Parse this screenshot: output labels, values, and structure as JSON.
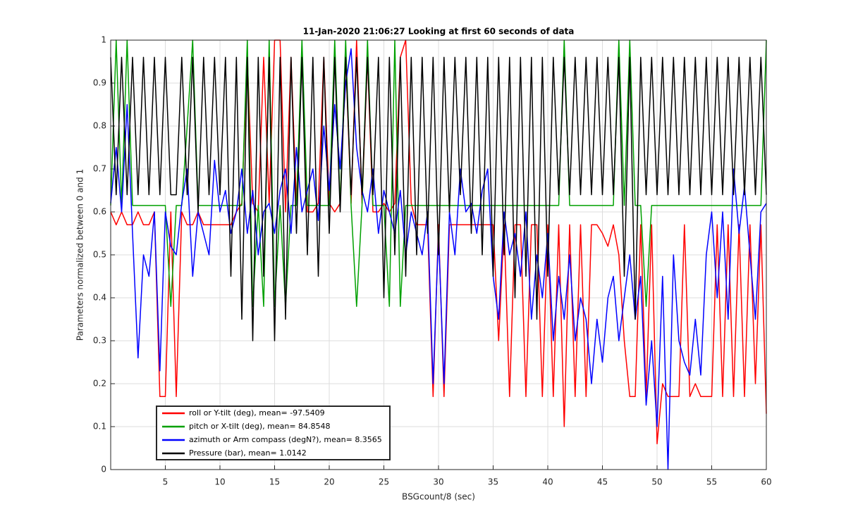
{
  "chart_data": {
    "type": "line",
    "title": "11-Jan-2020 21:06:27 Looking at first 60 seconds of data",
    "xlabel": "BSGcount/8 (sec)",
    "ylabel": "Parameters normalized between 0 and 1",
    "x": [
      0,
      0.5,
      1,
      1.5,
      2,
      2.5,
      3,
      3.5,
      4,
      4.5,
      5,
      5.5,
      6,
      6.5,
      7,
      7.5,
      8,
      8.5,
      9,
      9.5,
      10,
      10.5,
      11,
      11.5,
      12,
      12.5,
      13,
      13.5,
      14,
      14.5,
      15,
      15.5,
      16,
      16.5,
      17,
      17.5,
      18,
      18.5,
      19,
      19.5,
      20,
      20.5,
      21,
      21.5,
      22,
      22.5,
      23,
      23.5,
      24,
      24.5,
      25,
      25.5,
      26,
      26.5,
      27,
      27.5,
      28,
      28.5,
      29,
      29.5,
      30,
      30.5,
      31,
      31.5,
      32,
      32.5,
      33,
      33.5,
      34,
      34.5,
      35,
      35.5,
      36,
      36.5,
      37,
      37.5,
      38,
      38.5,
      39,
      39.5,
      40,
      40.5,
      41,
      41.5,
      42,
      42.5,
      43,
      43.5,
      44,
      44.5,
      45,
      45.5,
      46,
      46.5,
      47,
      47.5,
      48,
      48.5,
      49,
      49.5,
      50,
      50.5,
      51,
      51.5,
      52,
      52.5,
      53,
      53.5,
      54,
      54.5,
      55,
      55.5,
      56,
      56.5,
      57,
      57.5,
      58,
      58.5,
      59,
      59.5,
      60
    ],
    "series": [
      {
        "name": "roll or Y-tilt (deg), mean= -97.5409",
        "color": "#ff0000",
        "values": [
          0.6,
          0.57,
          0.6,
          0.57,
          0.57,
          0.6,
          0.57,
          0.57,
          0.6,
          0.17,
          0.17,
          0.6,
          0.17,
          0.6,
          0.57,
          0.57,
          0.6,
          0.57,
          0.57,
          0.57,
          0.57,
          0.57,
          0.57,
          0.6,
          0.62,
          0.96,
          0.62,
          0.6,
          0.96,
          0.62,
          1,
          1,
          0.6,
          0.96,
          0.62,
          0.96,
          0.6,
          0.6,
          0.62,
          0.96,
          0.62,
          0.6,
          0.62,
          0.96,
          0.62,
          1,
          0.62,
          0.96,
          0.6,
          0.6,
          0.62,
          0.6,
          0.62,
          0.96,
          1,
          0.62,
          0.57,
          0.57,
          0.57,
          0.17,
          0.57,
          0.17,
          0.57,
          0.57,
          0.57,
          0.57,
          0.57,
          0.57,
          0.57,
          0.57,
          0.57,
          0.3,
          0.57,
          0.17,
          0.57,
          0.57,
          0.17,
          0.57,
          0.57,
          0.17,
          0.57,
          0.17,
          0.57,
          0.1,
          0.57,
          0.17,
          0.57,
          0.17,
          0.57,
          0.57,
          0.55,
          0.52,
          0.57,
          0.5,
          0.3,
          0.17,
          0.17,
          0.57,
          0.17,
          0.57,
          0.06,
          0.2,
          0.17,
          0.17,
          0.17,
          0.57,
          0.17,
          0.2,
          0.17,
          0.17,
          0.17,
          0.57,
          0.17,
          0.57,
          0.17,
          0.57,
          0.17,
          0.57,
          0.2,
          0.57,
          0.13
        ]
      },
      {
        "name": "pitch or X-tilt (deg), mean= 84.8548",
        "color": "#00a000",
        "values": [
          0.615,
          1,
          0.615,
          1,
          0.615,
          0.615,
          0.615,
          0.615,
          0.615,
          0.615,
          0.615,
          0.38,
          0.615,
          0.615,
          0.8,
          1,
          0.615,
          0.615,
          0.615,
          0.615,
          0.615,
          0.615,
          0.615,
          0.615,
          0.615,
          1,
          0.38,
          0.615,
          0.38,
          1,
          0.38,
          0.615,
          0.38,
          0.615,
          0.615,
          1,
          0.615,
          0.615,
          0.615,
          0.615,
          0.615,
          1,
          0.615,
          1,
          0.615,
          0.38,
          0.615,
          1,
          0.615,
          0.615,
          0.615,
          0.38,
          1,
          0.38,
          0.615,
          0.615,
          0.615,
          0.615,
          0.615,
          0.615,
          0.615,
          0.615,
          0.615,
          0.615,
          0.615,
          0.615,
          0.615,
          0.615,
          0.615,
          0.615,
          0.615,
          0.615,
          0.615,
          0.615,
          0.615,
          0.615,
          0.615,
          0.615,
          0.615,
          0.615,
          0.615,
          0.615,
          0.615,
          1,
          0.615,
          0.615,
          0.615,
          0.615,
          0.615,
          0.615,
          0.615,
          0.615,
          0.615,
          1,
          0.615,
          1,
          0.615,
          0.615,
          0.38,
          0.615,
          0.615,
          0.615,
          0.615,
          0.615,
          0.615,
          0.615,
          0.615,
          0.615,
          0.615,
          0.615,
          0.615,
          0.615,
          0.615,
          0.615,
          0.615,
          0.615,
          0.615,
          0.615,
          0.615,
          0.615,
          1
        ]
      },
      {
        "name": "azimuth or Arm compass (degN?), mean= 8.3565",
        "color": "#0000ff",
        "values": [
          0.62,
          0.75,
          0.6,
          0.85,
          0.55,
          0.26,
          0.5,
          0.45,
          0.6,
          0.23,
          0.6,
          0.52,
          0.5,
          0.62,
          0.7,
          0.45,
          0.6,
          0.55,
          0.5,
          0.72,
          0.6,
          0.65,
          0.55,
          0.6,
          0.7,
          0.55,
          0.65,
          0.5,
          0.6,
          0.62,
          0.55,
          0.65,
          0.7,
          0.55,
          0.75,
          0.6,
          0.65,
          0.7,
          0.58,
          0.8,
          0.65,
          0.85,
          0.7,
          0.9,
          0.98,
          0.75,
          0.65,
          0.6,
          0.7,
          0.55,
          0.65,
          0.6,
          0.55,
          0.65,
          0.5,
          0.6,
          0.55,
          0.5,
          0.6,
          0.2,
          0.55,
          0.2,
          0.6,
          0.5,
          0.7,
          0.6,
          0.62,
          0.55,
          0.65,
          0.7,
          0.45,
          0.35,
          0.6,
          0.5,
          0.55,
          0.45,
          0.6,
          0.35,
          0.5,
          0.4,
          0.55,
          0.3,
          0.45,
          0.35,
          0.5,
          0.3,
          0.4,
          0.35,
          0.2,
          0.35,
          0.25,
          0.4,
          0.45,
          0.3,
          0.4,
          0.5,
          0.35,
          0.45,
          0.15,
          0.3,
          0.1,
          0.45,
          0,
          0.5,
          0.3,
          0.25,
          0.22,
          0.35,
          0.22,
          0.5,
          0.6,
          0.4,
          0.6,
          0.35,
          0.7,
          0.55,
          0.66,
          0.5,
          0.35,
          0.6,
          0.62
        ]
      },
      {
        "name": "Pressure (bar), mean= 1.0142",
        "color": "#000000",
        "values": [
          0.96,
          0.64,
          0.96,
          0.64,
          0.96,
          0.64,
          0.96,
          0.64,
          0.96,
          0.64,
          0.96,
          0.64,
          0.64,
          0.96,
          0.64,
          0.96,
          0.6,
          0.96,
          0.64,
          0.96,
          0.64,
          0.96,
          0.45,
          0.96,
          0.35,
          0.96,
          0.3,
          0.96,
          0.45,
          0.96,
          0.3,
          0.96,
          0.35,
          0.96,
          0.55,
          0.96,
          0.5,
          0.96,
          0.45,
          0.96,
          0.55,
          0.96,
          0.6,
          0.96,
          0.64,
          0.96,
          0.64,
          0.96,
          0.64,
          0.96,
          0.4,
          0.96,
          0.5,
          0.96,
          0.45,
          0.96,
          0.5,
          0.96,
          0.55,
          0.96,
          0.5,
          0.96,
          0.6,
          0.96,
          0.64,
          0.96,
          0.55,
          0.96,
          0.5,
          0.96,
          0.45,
          0.96,
          0.5,
          0.96,
          0.4,
          0.96,
          0.45,
          0.96,
          0.35,
          0.96,
          0.45,
          0.96,
          0.64,
          0.96,
          0.64,
          0.96,
          0.64,
          0.96,
          0.64,
          0.96,
          0.64,
          0.96,
          0.64,
          0.96,
          0.45,
          0.96,
          0.35,
          0.96,
          0.64,
          0.96,
          0.64,
          0.96,
          0.64,
          0.96,
          0.64,
          0.96,
          0.64,
          0.96,
          0.64,
          0.96,
          0.64,
          0.96,
          0.64,
          0.96,
          0.64,
          0.96,
          0.64,
          0.96,
          0.64,
          0.96,
          0.64
        ]
      }
    ],
    "xlim": [
      0,
      60
    ],
    "ylim": [
      0,
      1
    ],
    "xticks": [
      5,
      10,
      15,
      20,
      25,
      30,
      35,
      40,
      45,
      50,
      55,
      60
    ],
    "yticks": [
      0,
      0.1,
      0.2,
      0.3,
      0.4,
      0.5,
      0.6,
      0.7,
      0.8,
      0.9,
      1
    ],
    "grid": true,
    "legend": "lower left"
  }
}
